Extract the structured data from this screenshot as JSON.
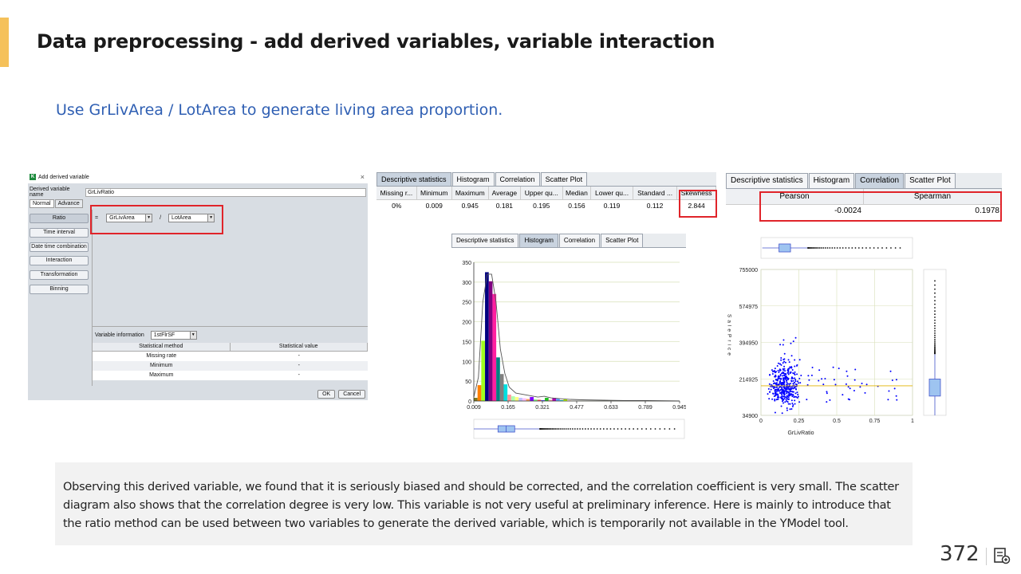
{
  "slide": {
    "title": "Data preprocessing - add derived variables, variable interaction",
    "subtitle": "Use GrLivArea / LotArea to generate living area proportion.",
    "note": "Observing this derived variable, we found that it is seriously biased and should be corrected, and the correlation coefficient is very small. The scatter diagram also shows that the correlation degree is very low. This variable is not very useful at preliminary inference. Here is mainly to introduce that the ratio method can be used between two variables to generate the derived variable, which is temporarily not available in the YModel tool.",
    "page_number": "372",
    "accent_color": "#f5c15a"
  },
  "dialog": {
    "logo": "K",
    "title": "Add derived variable",
    "close": "×",
    "name_label": "Derived variable name",
    "name_value": "GrLivRatio",
    "tabs": [
      "Normal",
      "Advance"
    ],
    "methods": [
      "Ratio",
      "Time interval",
      "Date time combination",
      "Interaction",
      "Transformation",
      "Binning"
    ],
    "formula_eq": "=",
    "numerator": "GrLivArea",
    "operator": "/",
    "denominator": "LotArea",
    "var_info_label": "Variable information",
    "var_info_value": "1stFlrSF",
    "table_headers": [
      "Statistical method",
      "Statistical value"
    ],
    "table_rows": [
      {
        "method": "Missing rate",
        "value": "-"
      },
      {
        "method": "Minimum",
        "value": "-"
      },
      {
        "method": "Maximum",
        "value": "-"
      }
    ],
    "ok": "OK",
    "cancel": "Cancel"
  },
  "desc_panel": {
    "tabs": [
      "Descriptive statistics",
      "Histogram",
      "Correlation",
      "Scatter Plot"
    ],
    "headers": [
      "Missing r...",
      "Minimum",
      "Maximum",
      "Average",
      "Upper qu...",
      "Median",
      "Lower qu...",
      "Standard ...",
      "Skewness"
    ],
    "values": [
      "0%",
      "0.009",
      "0.945",
      "0.181",
      "0.195",
      "0.156",
      "0.119",
      "0.112",
      "2.844"
    ]
  },
  "corr_panel": {
    "tabs": [
      "Descriptive statistics",
      "Histogram",
      "Correlation",
      "Scatter Plot"
    ],
    "headers": [
      "Pearson",
      "Spearman"
    ],
    "values": [
      "-0.0024",
      "0.1978"
    ]
  },
  "hist_panel": {
    "tabs": [
      "Descriptive statistics",
      "Histogram",
      "Correlation",
      "Scatter Plot"
    ]
  },
  "chart_data": [
    {
      "type": "bar",
      "title": "",
      "xlabel": "",
      "ylabel": "",
      "ylim": [
        0,
        350
      ],
      "y_ticks": [
        0,
        50,
        100,
        150,
        200,
        250,
        300,
        350
      ],
      "x_ticks": [
        "0.009",
        "0.165",
        "0.321",
        "0.477",
        "0.633",
        "0.789",
        "0.945"
      ],
      "xlim": [
        0.009,
        0.945
      ],
      "bins": [
        {
          "x": 0.009,
          "value": 8,
          "color": "#7a7a20"
        },
        {
          "x": 0.026,
          "value": 40,
          "color": "#ff7f00"
        },
        {
          "x": 0.043,
          "value": 152,
          "color": "#a0ff1f"
        },
        {
          "x": 0.06,
          "value": 325,
          "color": "#000080"
        },
        {
          "x": 0.077,
          "value": 302,
          "color": "#800080"
        },
        {
          "x": 0.094,
          "value": 270,
          "color": "#ff1fa0"
        },
        {
          "x": 0.111,
          "value": 110,
          "color": "#008080"
        },
        {
          "x": 0.128,
          "value": 68,
          "color": "#808080"
        },
        {
          "x": 0.145,
          "value": 42,
          "color": "#00e0e0"
        },
        {
          "x": 0.162,
          "value": 16,
          "color": "#ff9999"
        },
        {
          "x": 0.179,
          "value": 12,
          "color": "#b0ffb0"
        },
        {
          "x": 0.196,
          "value": 10,
          "color": "#ffff80"
        },
        {
          "x": 0.213,
          "value": 8,
          "color": "#c0c0ff"
        },
        {
          "x": 0.23,
          "value": 7,
          "color": "#ffc0ff"
        },
        {
          "x": 0.247,
          "value": 5,
          "color": "#ffa060"
        },
        {
          "x": 0.264,
          "value": 10,
          "color": "#8000ff"
        },
        {
          "x": 0.281,
          "value": 4,
          "color": "#80ff80"
        },
        {
          "x": 0.298,
          "value": 3,
          "color": "#ff4040"
        },
        {
          "x": 0.315,
          "value": 2,
          "color": "#4040ff"
        },
        {
          "x": 0.332,
          "value": 8,
          "color": "#20c020"
        },
        {
          "x": 0.349,
          "value": 3,
          "color": "#ffa0a0"
        },
        {
          "x": 0.366,
          "value": 8,
          "color": "#b000b0"
        },
        {
          "x": 0.383,
          "value": 6,
          "color": "#60a0ff"
        },
        {
          "x": 0.4,
          "value": 2,
          "color": "#00c0c0"
        },
        {
          "x": 0.417,
          "value": 4,
          "color": "#c0ff00"
        },
        {
          "x": 0.434,
          "value": 1,
          "color": "#ff6000"
        }
      ],
      "density": [
        [
          0.009,
          10
        ],
        [
          0.03,
          60
        ],
        [
          0.05,
          250
        ],
        [
          0.07,
          320
        ],
        [
          0.09,
          320
        ],
        [
          0.11,
          250
        ],
        [
          0.13,
          130
        ],
        [
          0.15,
          70
        ],
        [
          0.17,
          35
        ],
        [
          0.2,
          20
        ],
        [
          0.25,
          15
        ],
        [
          0.3,
          10
        ],
        [
          0.33,
          12
        ],
        [
          0.36,
          8
        ],
        [
          0.4,
          6
        ],
        [
          0.45,
          4
        ],
        [
          0.5,
          3
        ],
        [
          0.6,
          2
        ],
        [
          0.7,
          1
        ],
        [
          0.8,
          1
        ],
        [
          0.945,
          0
        ]
      ],
      "boxplot": {
        "min": 0.009,
        "q1": 0.119,
        "median": 0.156,
        "q3": 0.195,
        "whisker_high": 0.31,
        "max": 0.945
      }
    },
    {
      "type": "scatter",
      "title": "",
      "xlabel": "GrLivRatio",
      "ylabel": "SalePrice",
      "xlim": [
        0,
        1
      ],
      "ylim": [
        34900,
        755000
      ],
      "x_ticks": [
        "0",
        "0.25",
        "0.5",
        "0.75",
        "1"
      ],
      "y_ticks": [
        "34900",
        "214925",
        "394950",
        "574975",
        "755000"
      ],
      "mean_line_y": 180921,
      "point_color": "#0000ff"
    }
  ]
}
